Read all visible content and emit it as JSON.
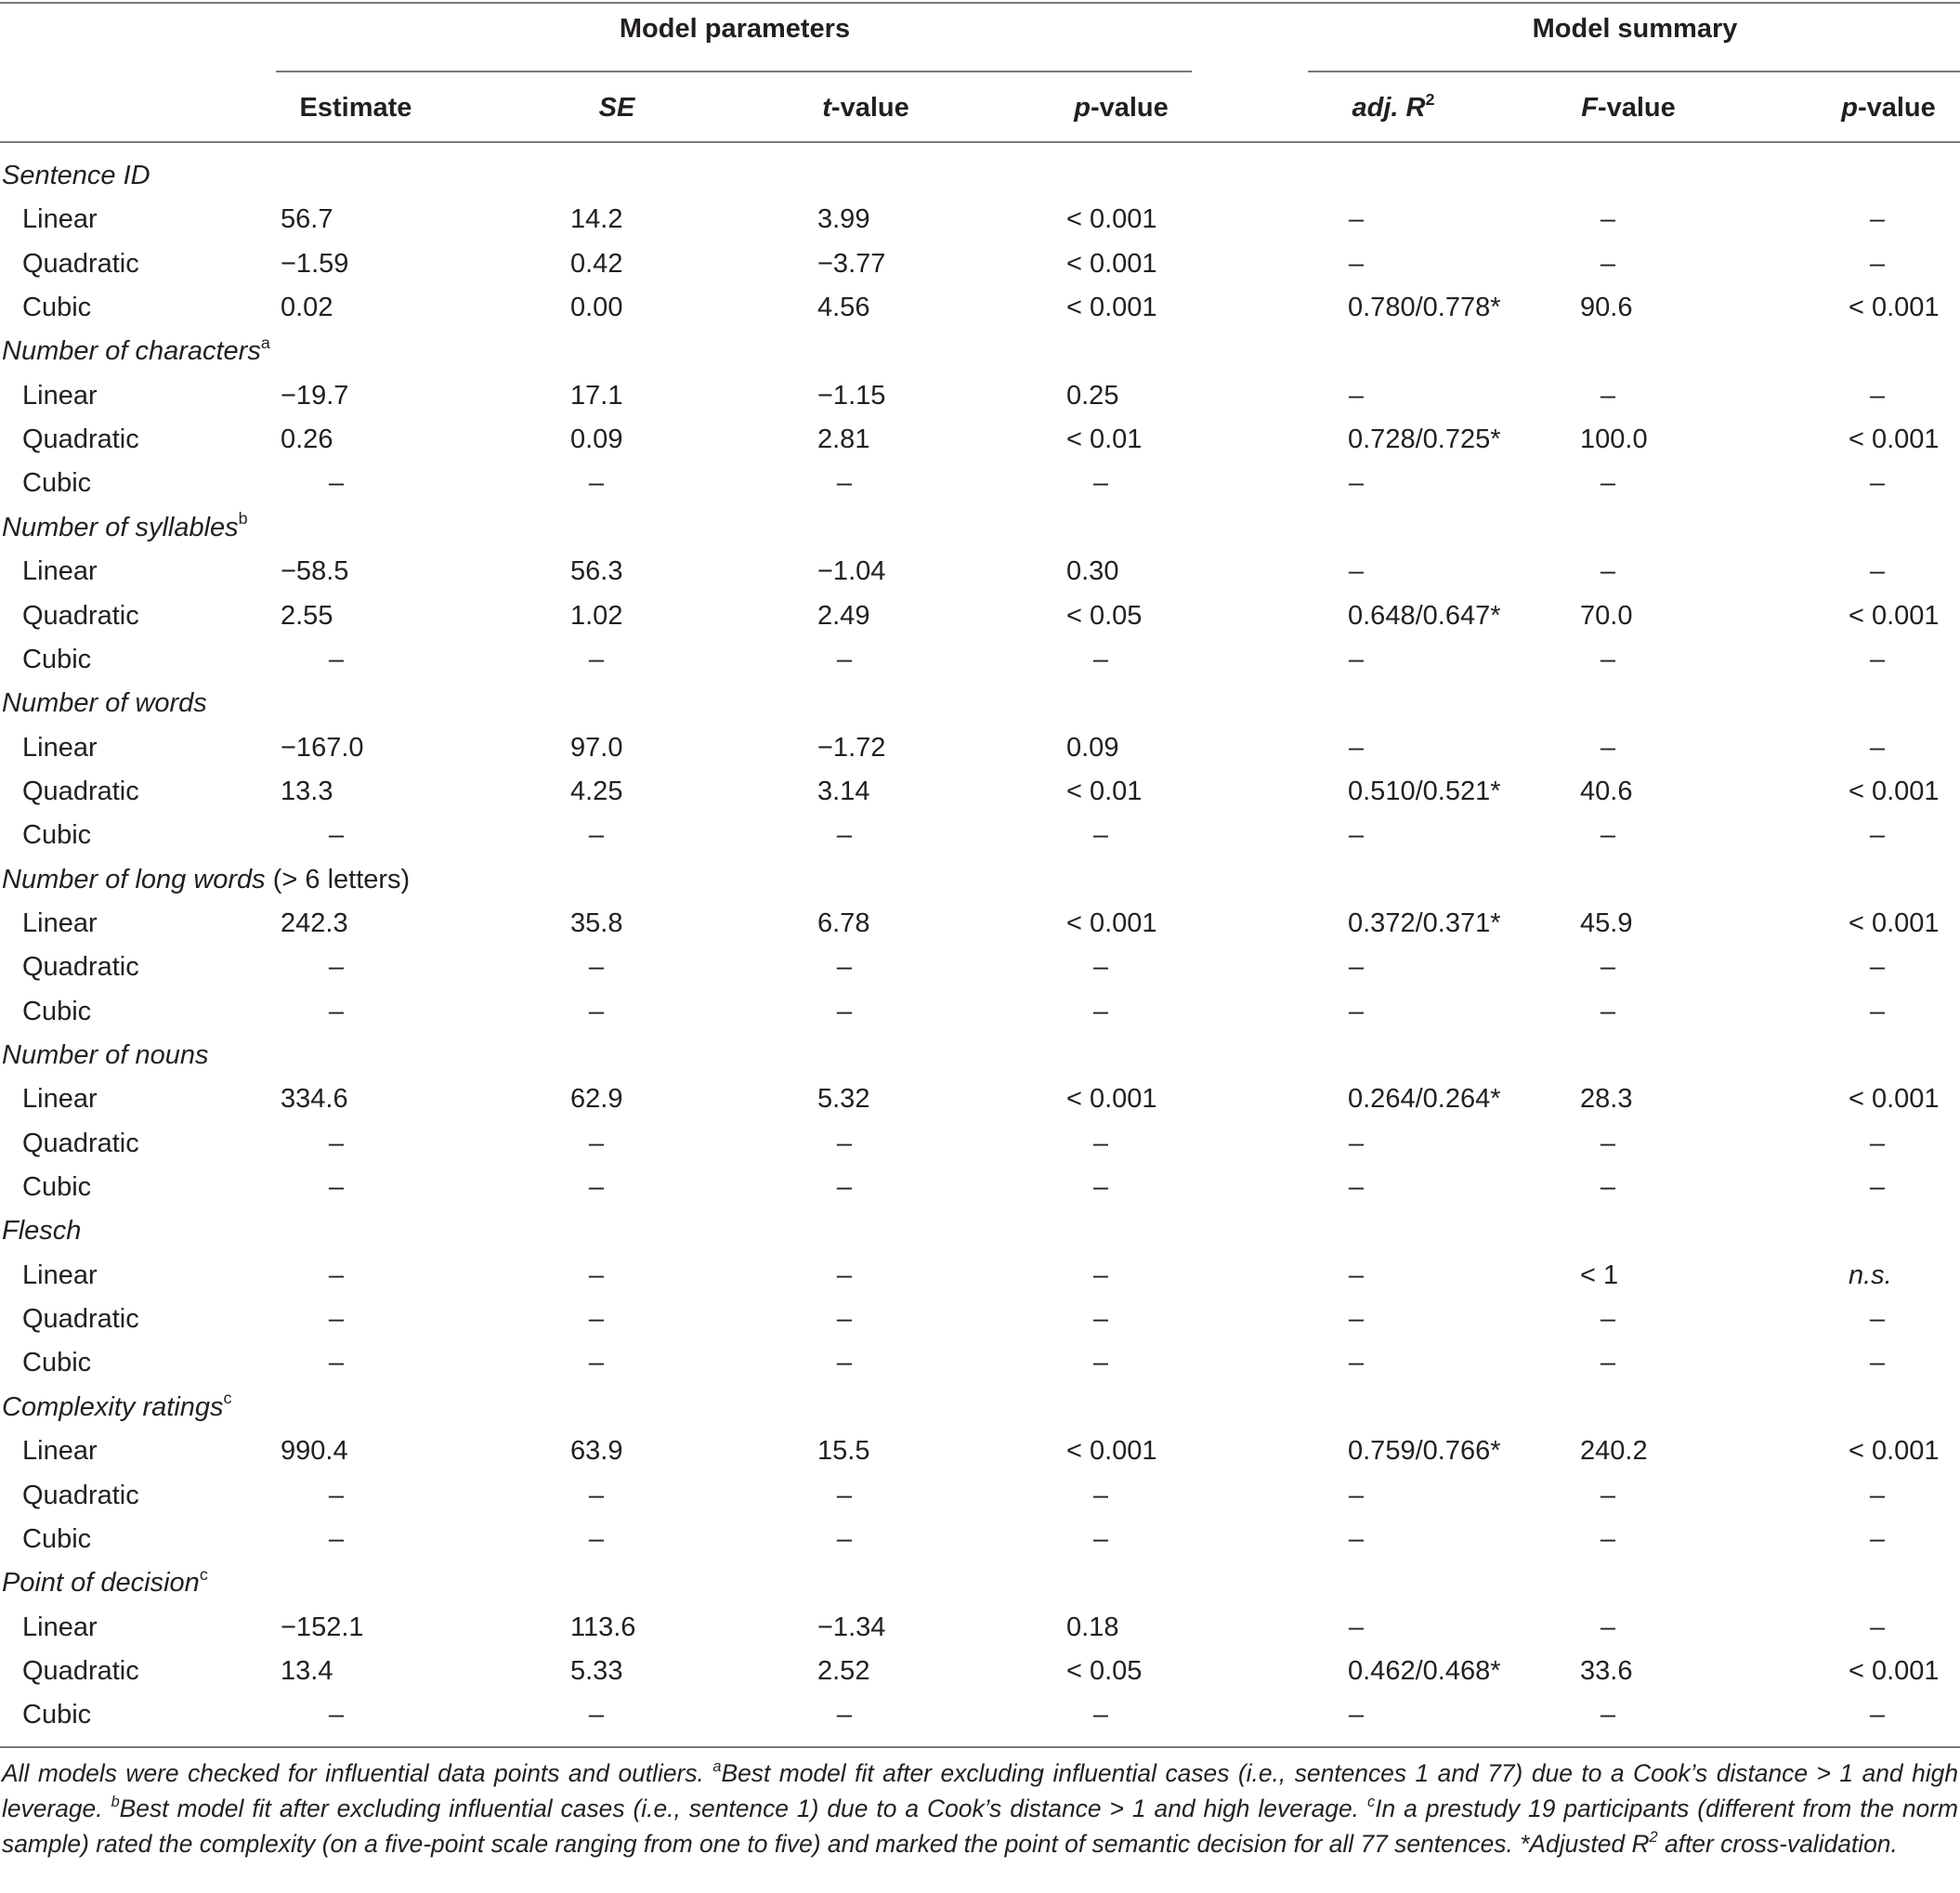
{
  "header": {
    "group_left": "Model parameters",
    "group_right": "Model summary",
    "columns": [
      {
        "pre": "",
        "italic": "",
        "post": "Estimate"
      },
      {
        "pre": "",
        "italic": "SE",
        "post": ""
      },
      {
        "pre": "",
        "italic": "t",
        "post": "-value"
      },
      {
        "pre": "",
        "italic": "p",
        "post": "-value"
      },
      {
        "pre": "",
        "italic": "adj. R",
        "post": "",
        "sup": "2"
      },
      {
        "pre": "",
        "italic": "F",
        "post": "-value"
      },
      {
        "pre": "",
        "italic": "p",
        "post": "-value"
      }
    ]
  },
  "groups": [
    {
      "label": "Sentence ID",
      "sup": "",
      "suffix": "",
      "rows": [
        {
          "term": "Linear",
          "cells": [
            "56.7",
            "14.2",
            "3.99",
            "< 0.001",
            "–",
            "–",
            "–"
          ]
        },
        {
          "term": "Quadratic",
          "cells": [
            "−1.59",
            "0.42",
            "−3.77",
            "< 0.001",
            "–",
            "–",
            "–"
          ]
        },
        {
          "term": "Cubic",
          "cells": [
            "0.02",
            "0.00",
            "4.56",
            "< 0.001",
            "0.780/0.778*",
            "90.6",
            "< 0.001"
          ]
        }
      ]
    },
    {
      "label": "Number of characters",
      "sup": "a",
      "suffix": "",
      "rows": [
        {
          "term": "Linear",
          "cells": [
            "−19.7",
            "17.1",
            "−1.15",
            "0.25",
            "–",
            "–",
            "–"
          ]
        },
        {
          "term": "Quadratic",
          "cells": [
            "0.26",
            "0.09",
            "2.81",
            "< 0.01",
            "0.728/0.725*",
            "100.0",
            "< 0.001"
          ]
        },
        {
          "term": "Cubic",
          "cells": [
            "–",
            "–",
            "–",
            "–",
            "–",
            "–",
            "–"
          ]
        }
      ]
    },
    {
      "label": "Number of syllables",
      "sup": "b",
      "suffix": "",
      "rows": [
        {
          "term": "Linear",
          "cells": [
            "−58.5",
            "56.3",
            "−1.04",
            "0.30",
            "–",
            "–",
            "–"
          ]
        },
        {
          "term": "Quadratic",
          "cells": [
            "2.55",
            "1.02",
            "2.49",
            "< 0.05",
            "0.648/0.647*",
            "70.0",
            "< 0.001"
          ]
        },
        {
          "term": "Cubic",
          "cells": [
            "–",
            "–",
            "–",
            "–",
            "–",
            "–",
            "–"
          ]
        }
      ]
    },
    {
      "label": "Number of words",
      "sup": "",
      "suffix": "",
      "rows": [
        {
          "term": "Linear",
          "cells": [
            "−167.0",
            "97.0",
            "−1.72",
            "0.09",
            "–",
            "–",
            "–"
          ]
        },
        {
          "term": "Quadratic",
          "cells": [
            "13.3",
            "4.25",
            "3.14",
            "< 0.01",
            "0.510/0.521*",
            "40.6",
            "< 0.001"
          ]
        },
        {
          "term": "Cubic",
          "cells": [
            "–",
            "–",
            "–",
            "–",
            "–",
            "–",
            "–"
          ]
        }
      ]
    },
    {
      "label": "Number of long words",
      "sup": "",
      "suffix": " (> 6 letters)",
      "rows": [
        {
          "term": "Linear",
          "cells": [
            "242.3",
            "35.8",
            "6.78",
            "< 0.001",
            "0.372/0.371*",
            "45.9",
            "< 0.001"
          ]
        },
        {
          "term": "Quadratic",
          "cells": [
            "–",
            "–",
            "–",
            "–",
            "–",
            "–",
            "–"
          ]
        },
        {
          "term": "Cubic",
          "cells": [
            "–",
            "–",
            "–",
            "–",
            "–",
            "–",
            "–"
          ]
        }
      ]
    },
    {
      "label": "Number of nouns",
      "sup": "",
      "suffix": "",
      "rows": [
        {
          "term": "Linear",
          "cells": [
            "334.6",
            "62.9",
            "5.32",
            "< 0.001",
            "0.264/0.264*",
            "28.3",
            "< 0.001"
          ]
        },
        {
          "term": "Quadratic",
          "cells": [
            "–",
            "–",
            "–",
            "–",
            "–",
            "–",
            "–"
          ]
        },
        {
          "term": "Cubic",
          "cells": [
            "–",
            "–",
            "–",
            "–",
            "–",
            "–",
            "–"
          ]
        }
      ]
    },
    {
      "label": "Flesch",
      "sup": "",
      "suffix": "",
      "rows": [
        {
          "term": "Linear",
          "cells": [
            "–",
            "–",
            "–",
            "–",
            "–",
            "< 1",
            "n.s."
          ]
        },
        {
          "term": "Quadratic",
          "cells": [
            "–",
            "–",
            "–",
            "–",
            "–",
            "–",
            "–"
          ]
        },
        {
          "term": "Cubic",
          "cells": [
            "–",
            "–",
            "–",
            "–",
            "–",
            "–",
            "–"
          ]
        }
      ]
    },
    {
      "label": "Complexity ratings",
      "sup": "c",
      "suffix": "",
      "rows": [
        {
          "term": "Linear",
          "cells": [
            "990.4",
            "63.9",
            "15.5",
            "< 0.001",
            "0.759/0.766*",
            "240.2",
            "< 0.001"
          ]
        },
        {
          "term": "Quadratic",
          "cells": [
            "–",
            "–",
            "–",
            "–",
            "–",
            "–",
            "–"
          ]
        },
        {
          "term": "Cubic",
          "cells": [
            "–",
            "–",
            "–",
            "–",
            "–",
            "–",
            "–"
          ]
        }
      ]
    },
    {
      "label": "Point of decision",
      "sup": "c",
      "suffix": "",
      "rows": [
        {
          "term": "Linear",
          "cells": [
            "−152.1",
            "113.6",
            "−1.34",
            "0.18",
            "–",
            "–",
            "–"
          ]
        },
        {
          "term": "Quadratic",
          "cells": [
            "13.4",
            "5.33",
            "2.52",
            "< 0.05",
            "0.462/0.468*",
            "33.6",
            "< 0.001"
          ]
        },
        {
          "term": "Cubic",
          "cells": [
            "–",
            "–",
            "–",
            "–",
            "–",
            "–",
            "–"
          ]
        }
      ]
    }
  ],
  "footnote": [
    {
      "text": "All models were checked for influential data points and outliers. "
    },
    {
      "sup": "a"
    },
    {
      "text": "Best model fit after excluding influential cases (i.e., sentences 1 and 77) due to a Cook’s distance > 1 and high leverage. "
    },
    {
      "sup": "b"
    },
    {
      "text": "Best model fit after excluding influential cases (i.e., sentence 1) due to a Cook’s distance > 1 and high leverage. "
    },
    {
      "sup": "c"
    },
    {
      "text": "In a prestudy 19 participants (different from the norm sample) rated the complexity (on a five-point scale ranging from one to five) and marked the point of semantic decision for all 77 sentences. "
    },
    {
      "text": "*Adjusted R"
    },
    {
      "sup": "2"
    },
    {
      "text": " after cross-validation."
    }
  ]
}
